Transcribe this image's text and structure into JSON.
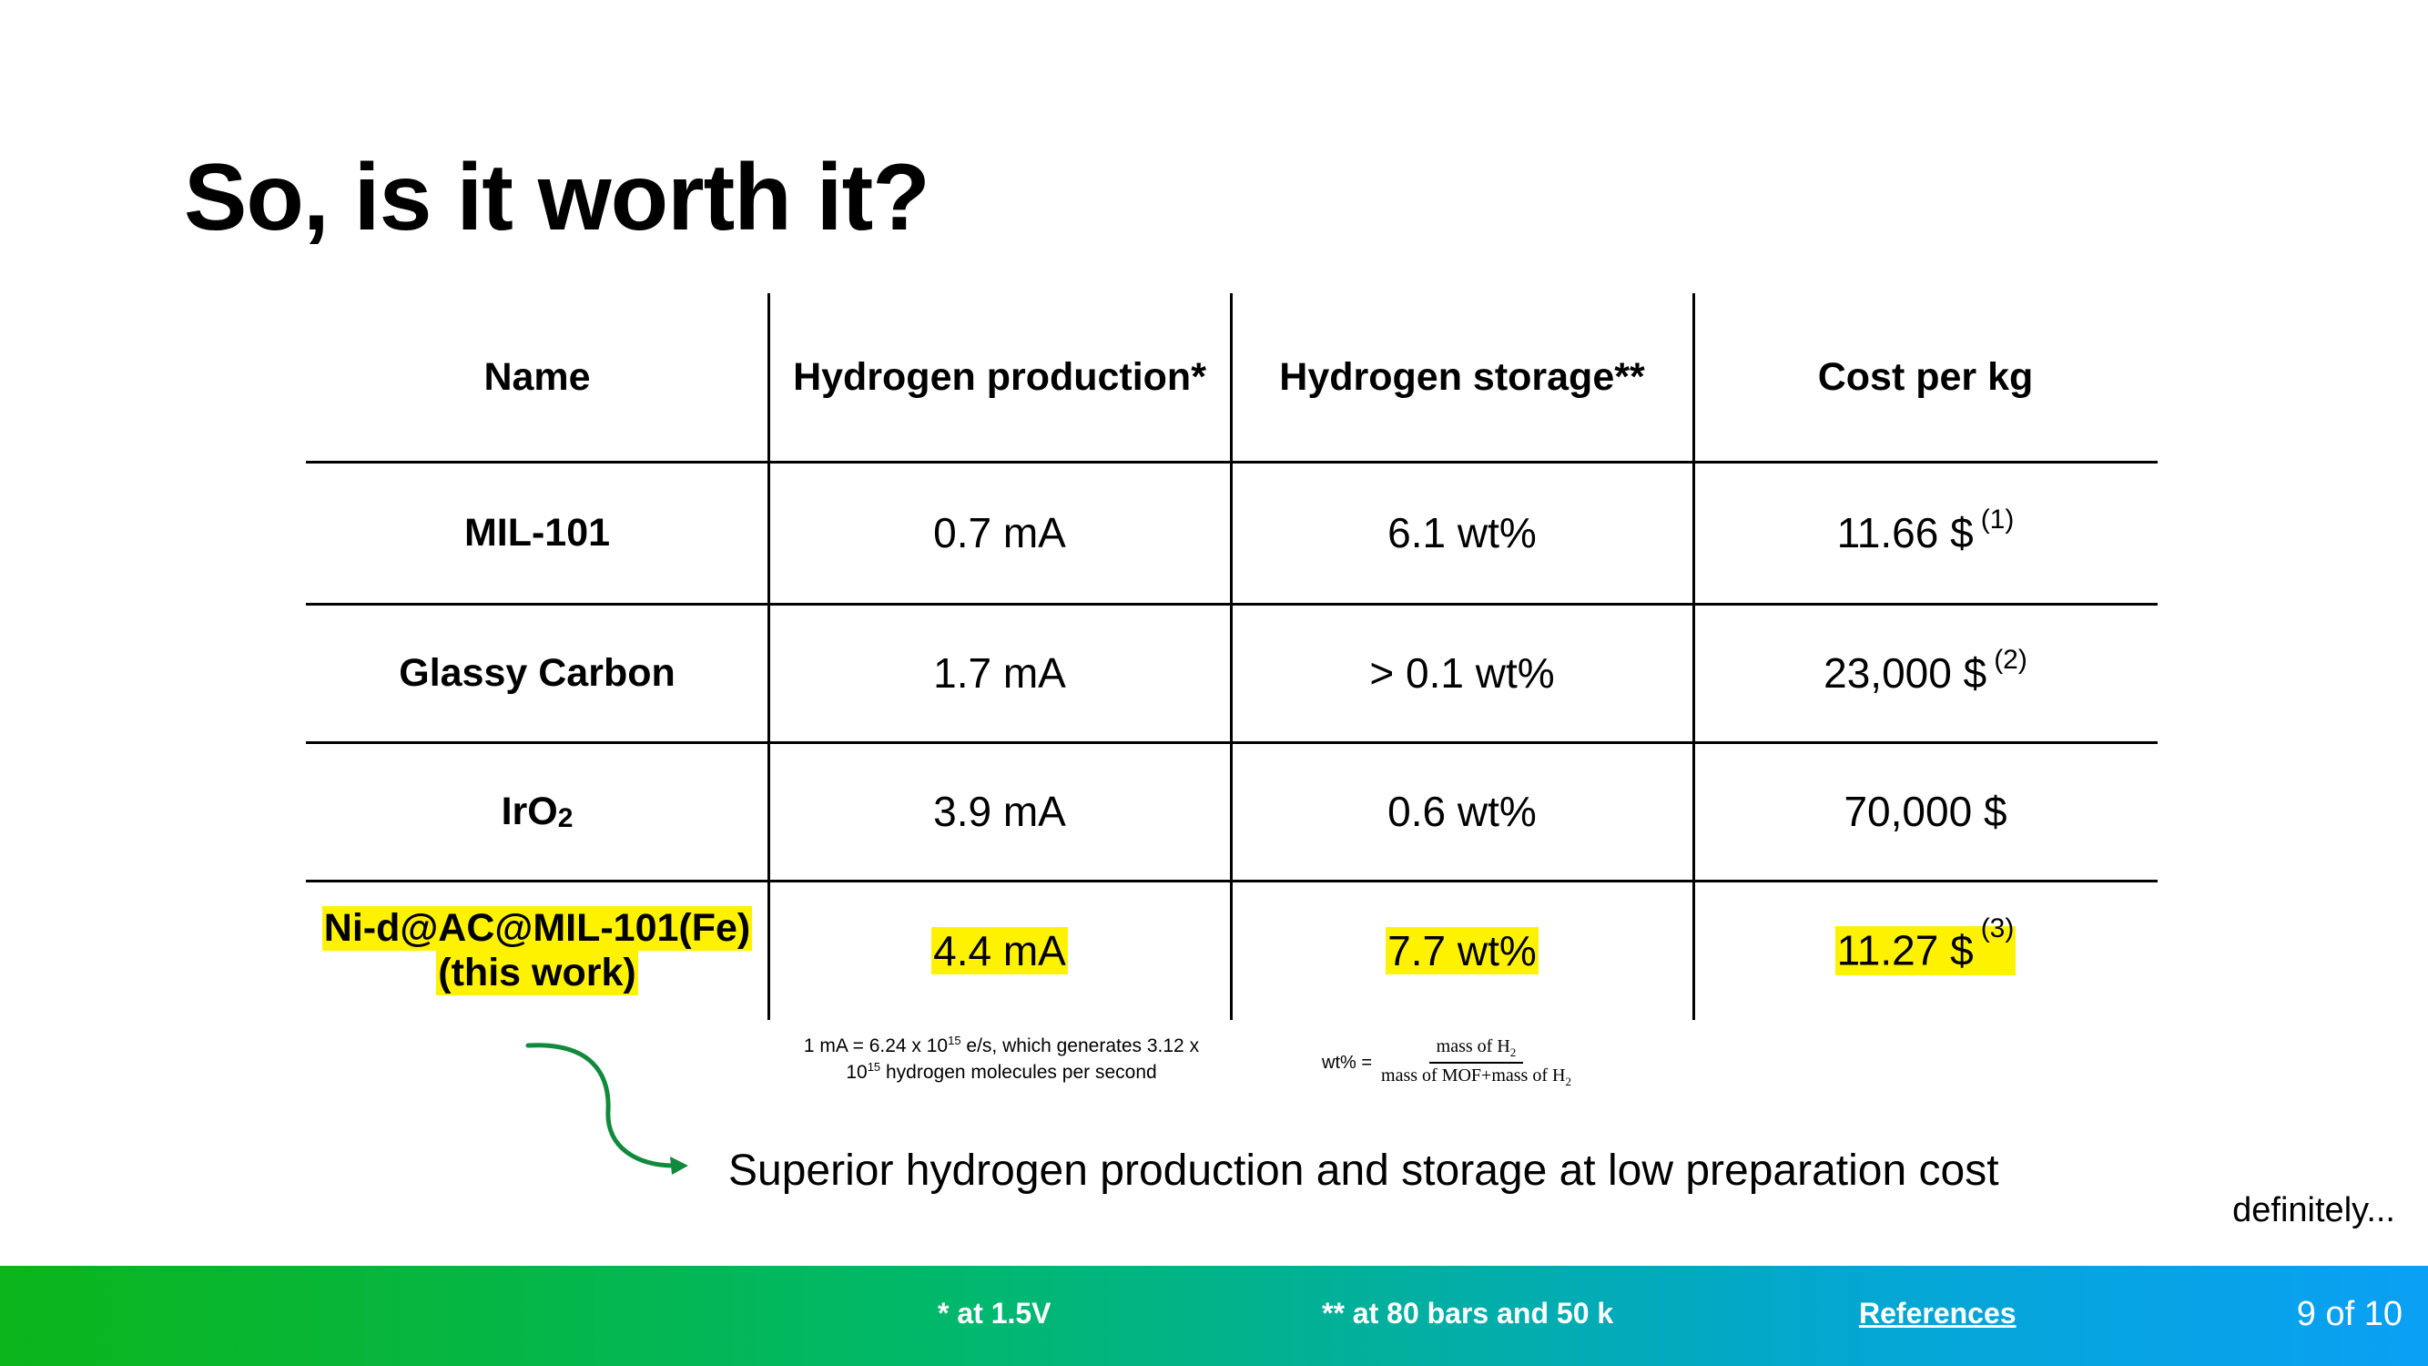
{
  "slide": {
    "title": "So, is it worth it?",
    "conclusion": "Superior hydrogen production and storage at low preparation cost",
    "aside": "definitely..."
  },
  "table": {
    "headers": [
      "Name",
      "Hydrogen production*",
      "Hydrogen storage**",
      "Cost per kg"
    ],
    "rows": [
      {
        "name": "MIL-101",
        "production": "0.7 mA",
        "storage": "6.1 wt%",
        "cost": "11.66 $",
        "ref": "(1)",
        "highlight": false
      },
      {
        "name": "Glassy Carbon",
        "production": "1.7 mA",
        "storage": "> 0.1 wt%",
        "cost": "23,000 $",
        "ref": "(2)",
        "highlight": false
      },
      {
        "name": "IrO",
        "name_sub": "2",
        "production": "3.9 mA",
        "storage": "0.6 wt%",
        "cost": "70,000 $",
        "ref": "",
        "highlight": false
      },
      {
        "name": "Ni-d@AC@MIL-101(Fe)",
        "name_line2": "(this work)",
        "production": "4.4 mA",
        "storage": "7.7 wt%",
        "cost": "11.27 $",
        "ref": "(3)",
        "highlight": true
      }
    ]
  },
  "notes": {
    "production_a": "1 mA = 6.24 x 10",
    "production_exp1": "15",
    "production_b": " e/s, which generates 3.12 x",
    "production_c": "10",
    "production_exp2": "15",
    "production_d": " hydrogen molecules per second",
    "formula_label": "wt% =",
    "formula_num": "mass of H",
    "formula_den": "mass of MOF+mass of H",
    "formula_sub": "2"
  },
  "footer": {
    "note1": "* at 1.5V",
    "note2": "** at 80 bars and 50 k",
    "references": "References",
    "page": "9 of 10"
  },
  "colors": {
    "highlight": "#fff200",
    "arrow": "#118a3c",
    "footer_start": "#0bb51a",
    "footer_end": "#0aa0f5"
  }
}
